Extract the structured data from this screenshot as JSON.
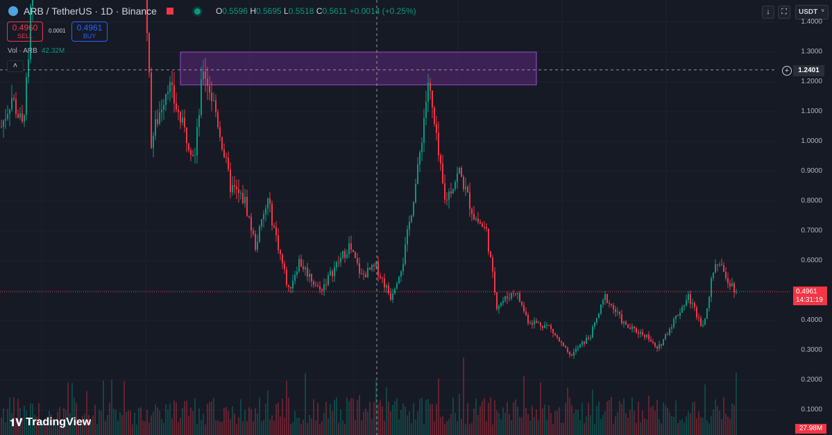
{
  "header": {
    "symbol": "ARB / TetherUS · 1D · Binance",
    "open_label": "O",
    "open": "0.5596",
    "high_label": "H",
    "high": "0.5695",
    "low_label": "L",
    "low": "0.5518",
    "close_label": "C",
    "close": "0.5611",
    "change": "+0.0014 (+0.25%)"
  },
  "trade": {
    "sell_price": "0.4960",
    "sell_label": "SELL",
    "spread": "0.0001",
    "buy_price": "0.4961",
    "buy_label": "BUY"
  },
  "volume": {
    "label": "Vol · ARB",
    "value": "42.32M",
    "last": "27.98M"
  },
  "toolbar": {
    "currency": "USDT",
    "currency_chevron": "˅",
    "download_icon": "↓",
    "fullscreen_icon": "⛶",
    "collapse_icon": "˄",
    "crosshair_add_icon": "+"
  },
  "axis": {
    "ticks": [
      "1.4000",
      "1.3000",
      "1.2000",
      "1.1000",
      "1.0000",
      "0.9000",
      "0.8000",
      "0.7000",
      "0.6000",
      "0.4000",
      "0.3000",
      "0.2000",
      "0.1000"
    ],
    "crosshair": "1.2401",
    "last_price": "0.4961",
    "countdown": "14:31:19"
  },
  "branding": {
    "name": "TradingView"
  },
  "colors": {
    "up": "#089981",
    "down": "#f23645",
    "zone": "#6a2d8f"
  },
  "chart_data": {
    "type": "candlestick",
    "price_keypoints": [
      [
        0,
        1.05
      ],
      [
        5,
        1.15
      ],
      [
        10,
        1.05
      ],
      [
        13,
        1.25
      ],
      [
        16,
        1.8
      ],
      [
        68,
        1.8
      ],
      [
        72,
        1.0
      ],
      [
        80,
        1.2
      ],
      [
        87,
        1.05
      ],
      [
        93,
        0.95
      ],
      [
        97,
        1.25
      ],
      [
        103,
        1.1
      ],
      [
        110,
        0.85
      ],
      [
        117,
        0.8
      ],
      [
        122,
        0.65
      ],
      [
        128,
        0.8
      ],
      [
        133,
        0.65
      ],
      [
        138,
        0.5
      ],
      [
        143,
        0.6
      ],
      [
        153,
        0.5
      ],
      [
        167,
        0.65
      ],
      [
        173,
        0.55
      ],
      [
        180,
        0.58
      ],
      [
        187,
        0.48
      ],
      [
        193,
        0.6
      ],
      [
        200,
        0.9
      ],
      [
        205,
        1.2
      ],
      [
        210,
        0.95
      ],
      [
        213,
        0.8
      ],
      [
        220,
        0.9
      ],
      [
        227,
        0.75
      ],
      [
        233,
        0.7
      ],
      [
        238,
        0.45
      ],
      [
        247,
        0.5
      ],
      [
        253,
        0.4
      ],
      [
        263,
        0.38
      ],
      [
        273,
        0.28
      ],
      [
        283,
        0.35
      ],
      [
        290,
        0.48
      ],
      [
        300,
        0.38
      ],
      [
        310,
        0.35
      ],
      [
        315,
        0.3
      ],
      [
        323,
        0.4
      ],
      [
        330,
        0.48
      ],
      [
        337,
        0.38
      ],
      [
        343,
        0.6
      ],
      [
        348,
        0.55
      ],
      [
        353,
        0.5
      ]
    ],
    "zone": {
      "high": 1.3,
      "low": 1.19
    }
  }
}
